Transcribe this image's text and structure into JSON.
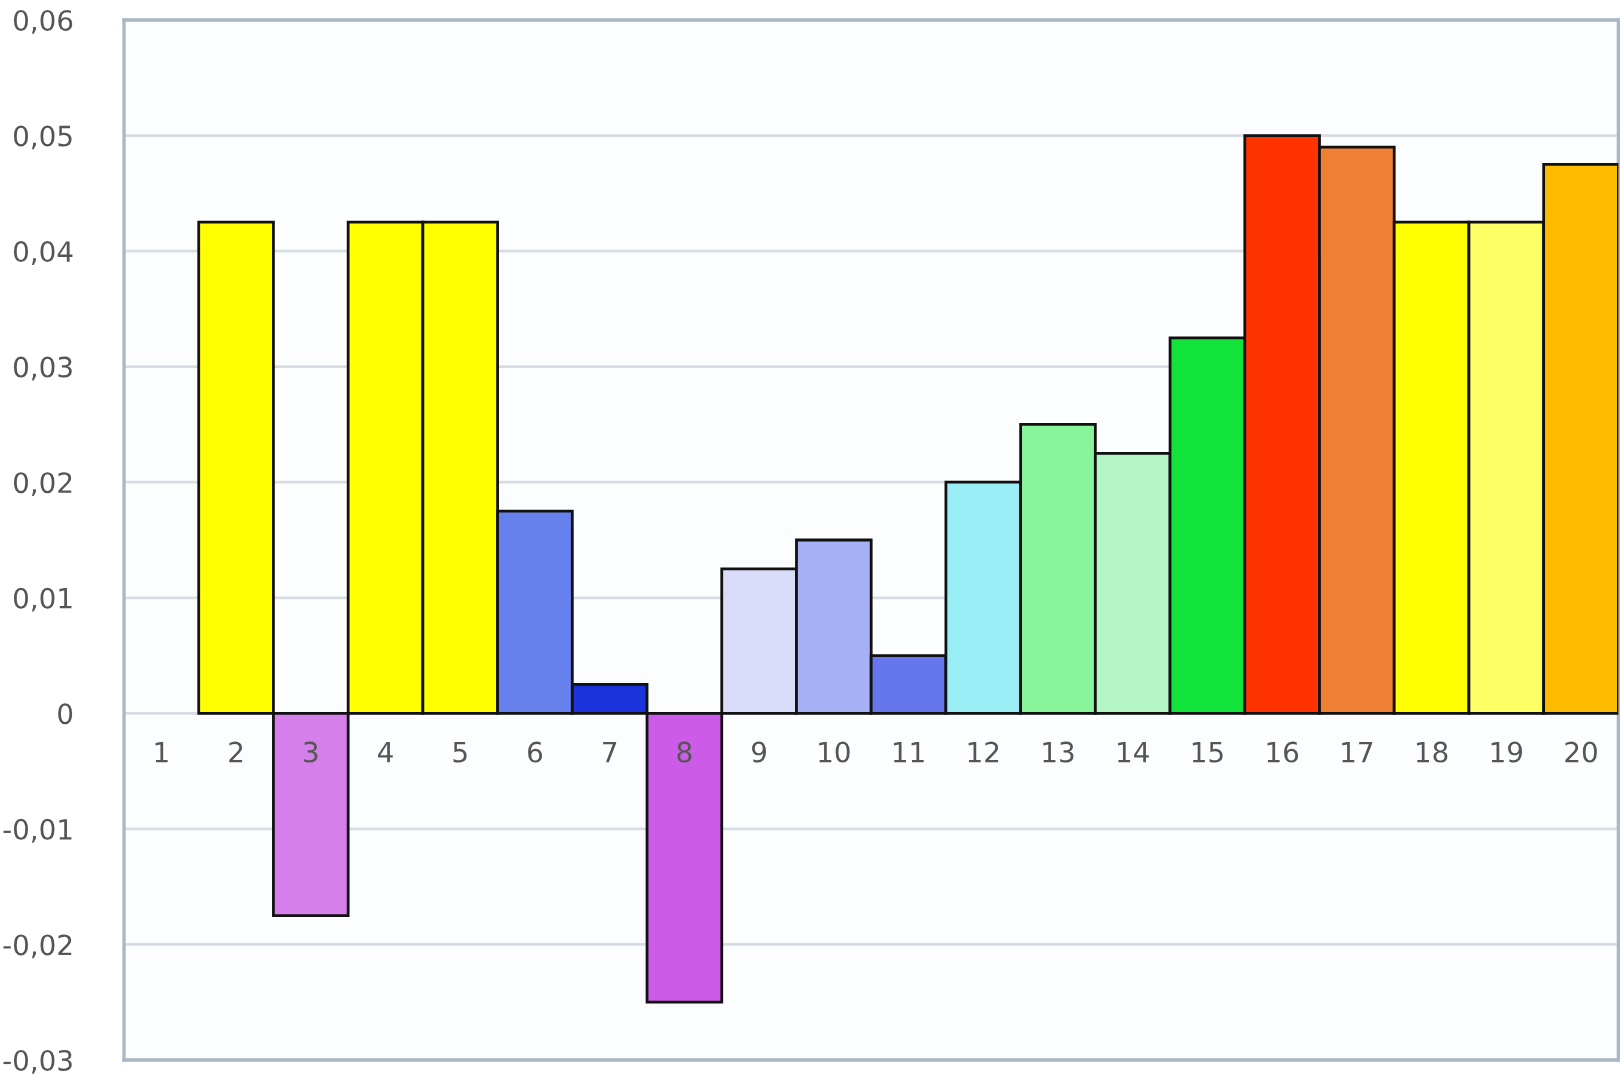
{
  "chart_data": {
    "type": "bar",
    "categories": [
      "1",
      "2",
      "3",
      "4",
      "5",
      "6",
      "7",
      "8",
      "9",
      "10",
      "11",
      "12",
      "13",
      "14",
      "15",
      "16",
      "17",
      "18",
      "19",
      "20"
    ],
    "values": [
      0,
      0.0425,
      -0.0175,
      0.0425,
      0.0425,
      0.0175,
      0.0025,
      -0.025,
      0.0125,
      0.015,
      0.005,
      0.02,
      0.025,
      0.0225,
      0.0325,
      0.05,
      0.049,
      0.0425,
      0.0425,
      0.0475
    ],
    "colors": [
      "#ffffff",
      "#ffff00",
      "#d580ea",
      "#ffff00",
      "#ffff00",
      "#6680ee",
      "#1a33dd",
      "#cc5ce8",
      "#d8dcf8",
      "#a5b0f5",
      "#6677ee",
      "#99eef5",
      "#88f59a",
      "#b3f5c5",
      "#11e33a",
      "#ff3300",
      "#ee7f33",
      "#ffff00",
      "#ffff66",
      "#ffbb00"
    ],
    "ylim": [
      -0.03,
      0.06
    ],
    "yticks": [
      {
        "value": -0.03,
        "label": "-0,03"
      },
      {
        "value": -0.02,
        "label": "-0,02"
      },
      {
        "value": -0.01,
        "label": "-0,01"
      },
      0,
      {
        "value": 0.01,
        "label": "0,01"
      },
      {
        "value": 0.02,
        "label": "0,02"
      },
      {
        "value": 0.03,
        "label": "0,03"
      },
      {
        "value": 0.04,
        "label": "0,04"
      },
      {
        "value": 0.05,
        "label": "0,05"
      },
      {
        "value": 0.06,
        "label": "0,06"
      }
    ],
    "grid": "y"
  }
}
